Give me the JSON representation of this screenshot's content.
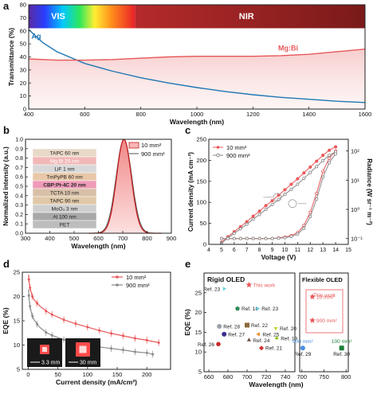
{
  "panel_labels": {
    "a": "a",
    "b": "b",
    "c": "c",
    "d": "d",
    "e": "e"
  },
  "colors": {
    "ag": "#1f77b4",
    "mgbi": "#e8585a",
    "gray": "#7a7a7a",
    "axis": "#222222"
  },
  "chart_data": [
    {
      "id": "a",
      "type": "line",
      "xlabel": "Wavelength (nm)",
      "ylabel": "Transmittance (%)",
      "xlim": [
        400,
        1600
      ],
      "ylim": [
        0,
        80
      ],
      "xticks": [
        400,
        600,
        800,
        1000,
        1200,
        1400,
        1600
      ],
      "yticks": [
        0,
        10,
        20,
        30,
        40,
        50,
        60,
        70,
        80
      ],
      "band_labels": {
        "vis": "VIS",
        "nir": "NIR"
      },
      "series": [
        {
          "name": "Ag",
          "x": [
            400,
            450,
            500,
            600,
            700,
            800,
            900,
            1000,
            1100,
            1200,
            1300,
            1400,
            1500,
            1600
          ],
          "y": [
            61,
            51,
            44,
            35,
            29,
            24,
            20,
            16.5,
            13.5,
            11,
            9,
            7.5,
            6,
            5
          ]
        },
        {
          "name": "Mg:Bi",
          "x": [
            400,
            500,
            600,
            700,
            800,
            900,
            1000,
            1100,
            1200,
            1300,
            1400,
            1500,
            1600
          ],
          "y": [
            38.5,
            37.5,
            37.5,
            38,
            39,
            40,
            40.5,
            40.5,
            40.5,
            41,
            42,
            44,
            46
          ]
        }
      ]
    },
    {
      "id": "b",
      "type": "line",
      "xlabel": "Wavelength (nm)",
      "ylabel": "Normalized intensity (a.u.)",
      "xlim": [
        300,
        900
      ],
      "ylim": [
        0,
        1.0
      ],
      "xticks": [
        300,
        400,
        500,
        600,
        700,
        800,
        900
      ],
      "yticks": [
        0.0,
        0.1,
        0.2,
        0.3,
        0.4,
        0.5,
        0.6,
        0.7,
        0.8,
        0.9,
        1.0
      ],
      "series": [
        {
          "name": "10 mm²",
          "peak": 705,
          "width": 30
        },
        {
          "name": "900 mm²",
          "peak": 705,
          "width": 32
        }
      ],
      "stack_layers": [
        "TAPC  60 nm",
        "Mg:Bi  20 nm",
        "LiF  1 nm",
        "TmPyPB  60 nm",
        "CBP:Pt-4C  20 nm",
        "TCTA  10 nm",
        "TAPC  90 nm",
        "MoO₃  3 nm",
        "Al  100 nm",
        "PET"
      ]
    },
    {
      "id": "c",
      "type": "line",
      "xlabel": "Voltage (V)",
      "ylabel": "Current density (mA cm⁻²)",
      "ylabel2": "Radiance (W sr⁻¹ m⁻²)",
      "xlim": [
        4,
        15
      ],
      "ylim": [
        0,
        250
      ],
      "xticks": [
        4,
        5,
        6,
        7,
        8,
        9,
        10,
        11,
        12,
        13,
        14,
        15
      ],
      "yticks": [
        0,
        50,
        100,
        150,
        200,
        250
      ],
      "y2ticks": [
        "10⁻¹",
        "10⁰",
        "10¹",
        "10²"
      ],
      "voltage": [
        5,
        5.5,
        6,
        6.5,
        7,
        7.5,
        8,
        8.5,
        9,
        9.5,
        10,
        10.5,
        11,
        11.5,
        12,
        12.5,
        13,
        13.5,
        14
      ],
      "series": [
        {
          "name": "10 mm²",
          "current": [
            5,
            18,
            30,
            42,
            54,
            67,
            79,
            92,
            104,
            117,
            130,
            143,
            156,
            170,
            184,
            198,
            212,
            224,
            232
          ],
          "radiance_log": [
            -1,
            -1,
            -1,
            -1,
            -1,
            -1,
            -1,
            -1,
            -1,
            -0.98,
            -0.95,
            -0.9,
            -0.8,
            -0.55,
            -0.1,
            0.55,
            1.3,
            1.75,
            2.0
          ]
        },
        {
          "name": "900 mm²",
          "current": [
            3,
            15,
            26,
            37,
            48,
            60,
            71,
            83,
            95,
            107,
            119,
            131,
            143,
            157,
            171,
            185,
            199,
            212,
            220
          ],
          "radiance_log": [
            -1,
            -1,
            -1,
            -1,
            -1,
            -1,
            -1,
            -1,
            -1,
            -0.99,
            -0.97,
            -0.93,
            -0.85,
            -0.65,
            -0.25,
            0.35,
            1.1,
            1.6,
            1.9
          ]
        }
      ]
    },
    {
      "id": "d",
      "type": "line",
      "xlabel": "Current density (mA/cm²)",
      "ylabel": "EQE (%)",
      "xlim": [
        -10,
        240
      ],
      "ylim": [
        5,
        25
      ],
      "xticks": [
        0,
        50,
        100,
        150,
        200
      ],
      "yticks": [
        5,
        10,
        15,
        20,
        25
      ],
      "series": [
        {
          "name": "10 mm²",
          "x": [
            0.5,
            1,
            2,
            3,
            5,
            7,
            10,
            15,
            20,
            30,
            40,
            60,
            80,
            100,
            120,
            140,
            160,
            180,
            200,
            220
          ],
          "y": [
            24.5,
            23.5,
            22.5,
            21.8,
            20.8,
            20,
            19.3,
            18.6,
            18,
            17,
            16.3,
            15.2,
            14.4,
            13.7,
            13,
            12.4,
            11.9,
            11.4,
            11,
            10.5
          ]
        },
        {
          "name": "900 mm²",
          "x": [
            0.5,
            1,
            2,
            3,
            5,
            7,
            10,
            15,
            20,
            30,
            40,
            60,
            80,
            100,
            120,
            140,
            160,
            180,
            200,
            210
          ],
          "y": [
            21.5,
            20.2,
            19,
            18,
            16.8,
            16,
            15.2,
            14.3,
            13.6,
            12.6,
            12,
            11.1,
            10.5,
            10,
            9.6,
            9.3,
            9.0,
            8.6,
            8.4,
            8.1
          ]
        }
      ],
      "inset_labels": [
        "3.3 mm",
        "30 mm"
      ]
    },
    {
      "id": "e",
      "type": "scatter",
      "xlabel": "Wavelength (nm)",
      "ylabel": "EQE (%)",
      "xlim": [
        655,
        750
      ],
      "ylim": [
        5,
        30
      ],
      "xticks": [
        660,
        680,
        700,
        720,
        740
      ],
      "yticks": [
        5,
        10,
        15,
        20,
        25
      ],
      "x2lim": [
        695,
        805
      ],
      "x2ticks": [
        700,
        750,
        800
      ],
      "group_titles": [
        "Rigid OLED",
        "Flexible OLED"
      ],
      "this_work_box": "This work",
      "points": [
        {
          "label": "This work",
          "x": 702,
          "y": 27,
          "color": "#e8585a",
          "shape": "star",
          "panel": "rigid"
        },
        {
          "label": "Ref. 23",
          "x": 676,
          "y": 26,
          "color": "#6fd3e0",
          "shape": "tri-r",
          "panel": "rigid"
        },
        {
          "label": "Ref. 18",
          "x": 690,
          "y": 21,
          "color": "#2e8b57",
          "shape": "pent",
          "panel": "rigid"
        },
        {
          "label": "Ref. 23",
          "x": 711,
          "y": 21,
          "color": "#6fd3e0",
          "shape": "tri-r",
          "panel": "rigid"
        },
        {
          "label": "Ref. 28",
          "x": 671,
          "y": 16.5,
          "color": "#9aa0a6",
          "shape": "circle",
          "panel": "rigid"
        },
        {
          "label": "Ref. 22",
          "x": 700,
          "y": 16.8,
          "color": "#8b6a3a",
          "shape": "square",
          "panel": "rigid"
        },
        {
          "label": "Ref. 20",
          "x": 730,
          "y": 16,
          "color": "#c7d63c",
          "shape": "tri-d",
          "panel": "rigid"
        },
        {
          "label": "Ref. 27",
          "x": 676,
          "y": 14.5,
          "color": "#3b2f8f",
          "shape": "circle",
          "panel": "rigid"
        },
        {
          "label": "Ref. 25",
          "x": 712,
          "y": 14.5,
          "color": "#f08a24",
          "shape": "tri-l",
          "panel": "rigid"
        },
        {
          "label": "Ref. 24",
          "x": 702,
          "y": 13,
          "color": "#6d4c41",
          "shape": "tri-u",
          "panel": "rigid"
        },
        {
          "label": "Ref. 19",
          "x": 731,
          "y": 13.5,
          "color": "#8fc31f",
          "shape": "tri-u",
          "panel": "rigid"
        },
        {
          "label": "Ref. 26",
          "x": 670,
          "y": 12,
          "color": "#c62828",
          "shape": "hex",
          "panel": "rigid"
        },
        {
          "label": "Ref. 21",
          "x": 715,
          "y": 11,
          "color": "#d32f2f",
          "shape": "diamond",
          "panel": "rigid"
        },
        {
          "label": "10 mm²",
          "x": 718,
          "y": 24,
          "color": "#e8585a",
          "shape": "star",
          "panel": "flex"
        },
        {
          "label": "900 mm²",
          "x": 718,
          "y": 18,
          "color": "#e8585a",
          "shape": "star",
          "panel": "flex"
        },
        {
          "label": "900 mm²",
          "x": 702,
          "y": 11,
          "color": "#4a90e2",
          "shape": "circle",
          "panel": "flex",
          "sub": "Ref. 29"
        },
        {
          "label": "100 mm²",
          "x": 790,
          "y": 11,
          "color": "#1b7f3a",
          "shape": "square",
          "panel": "flex",
          "sub": "Ref. 30"
        }
      ]
    }
  ]
}
